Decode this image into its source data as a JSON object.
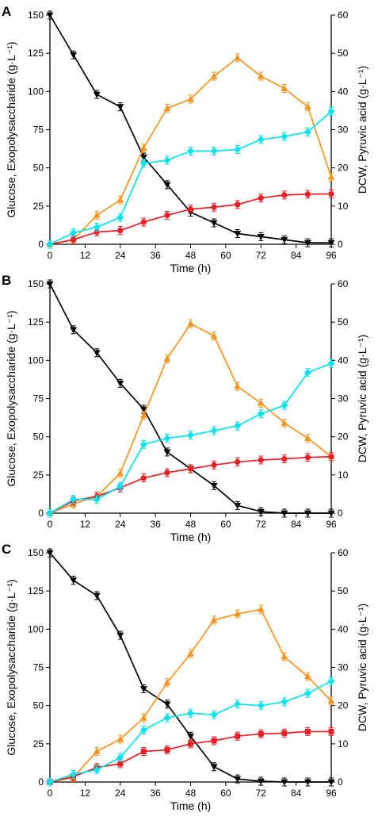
{
  "colors": {
    "glucose": "#000000",
    "dcw": "#ee1c24",
    "exopolysaccharide": "#f7941d",
    "pyruvic_acid": "#00e5ee"
  },
  "chart_data": [
    {
      "panel": "A",
      "type": "line",
      "xlabel": "Time (h)",
      "ylabel": "Glucose, Exopolysaccharide (g·L⁻¹)",
      "y2label": "DCW, Pyruvic acid (g·L⁻¹)",
      "xlim": [
        0,
        96
      ],
      "ylim": [
        0,
        150
      ],
      "y2lim": [
        0,
        60
      ],
      "xticks": [
        "0",
        "12",
        "24",
        "36",
        "48",
        "60",
        "72",
        "84",
        "96"
      ],
      "yticks": [
        "0",
        "25",
        "50",
        "75",
        "100",
        "125",
        "150"
      ],
      "y2ticks": [
        "0",
        "10",
        "20",
        "30",
        "40",
        "50",
        "60"
      ],
      "grid": false,
      "series": [
        {
          "key": "glucose",
          "axis": "left",
          "marker": "tri-down",
          "x": [
            0,
            8,
            16,
            24,
            32,
            40,
            48,
            56,
            64,
            72,
            80,
            88,
            96
          ],
          "y": [
            150,
            124,
            98,
            90,
            57,
            39,
            21,
            14,
            7,
            5,
            3,
            1,
            1
          ]
        },
        {
          "key": "exopolysaccharide",
          "axis": "left",
          "marker": "tri-up",
          "x": [
            0,
            8,
            16,
            24,
            32,
            40,
            48,
            56,
            64,
            72,
            80,
            88,
            96
          ],
          "y": [
            0,
            3,
            19,
            29,
            63,
            89,
            95,
            110,
            122,
            110,
            102,
            90,
            44
          ]
        },
        {
          "key": "dcw",
          "axis": "right",
          "marker": "circle",
          "x": [
            0,
            8,
            16,
            24,
            32,
            40,
            48,
            56,
            64,
            72,
            80,
            88,
            96
          ],
          "y": [
            0,
            1.2,
            3.2,
            3.6,
            5.8,
            7.6,
            9.2,
            9.7,
            10.4,
            12.1,
            12.9,
            13.1,
            13.2
          ]
        },
        {
          "key": "pyruvic_acid",
          "axis": "right",
          "marker": "diamond",
          "x": [
            0,
            8,
            16,
            24,
            32,
            40,
            48,
            56,
            64,
            72,
            80,
            88,
            96
          ],
          "y": [
            0,
            3,
            4.5,
            7,
            21.2,
            22,
            24.4,
            24.4,
            24.8,
            27.4,
            28.2,
            29.4,
            34.8
          ]
        }
      ]
    },
    {
      "panel": "B",
      "type": "line",
      "xlabel": "Time (h)",
      "ylabel": "Glucose, Exopolysaccharide (g·L⁻¹)",
      "y2label": "DCW, Pyruvic acid (g·L⁻¹)",
      "xlim": [
        0,
        96
      ],
      "ylim": [
        0,
        150
      ],
      "y2lim": [
        0,
        60
      ],
      "xticks": [
        "0",
        "12",
        "24",
        "36",
        "48",
        "60",
        "72",
        "84",
        "96"
      ],
      "yticks": [
        "0",
        "25",
        "50",
        "75",
        "100",
        "125",
        "150"
      ],
      "y2ticks": [
        "0",
        "10",
        "20",
        "30",
        "40",
        "50",
        "60"
      ],
      "grid": false,
      "series": [
        {
          "key": "glucose",
          "axis": "left",
          "marker": "tri-down",
          "x": [
            0,
            8,
            16,
            24,
            32,
            40,
            48,
            56,
            64,
            72,
            80,
            88,
            96
          ],
          "y": [
            150,
            120,
            105,
            85,
            68,
            40,
            29,
            18,
            5,
            1,
            0,
            0,
            0
          ]
        },
        {
          "key": "exopolysaccharide",
          "axis": "left",
          "marker": "tri-up",
          "x": [
            0,
            8,
            16,
            24,
            32,
            40,
            48,
            56,
            64,
            72,
            80,
            88,
            96
          ],
          "y": [
            0,
            6,
            11,
            26,
            64,
            101,
            124,
            116,
            83,
            72,
            59,
            49,
            37
          ]
        },
        {
          "key": "dcw",
          "axis": "right",
          "marker": "circle",
          "x": [
            0,
            8,
            16,
            24,
            32,
            40,
            48,
            56,
            64,
            72,
            80,
            88,
            96
          ],
          "y": [
            0,
            3.2,
            4.4,
            6.6,
            9.2,
            10.6,
            11.6,
            12.6,
            13.4,
            13.9,
            14.2,
            14.6,
            14.8
          ]
        },
        {
          "key": "pyruvic_acid",
          "axis": "right",
          "marker": "diamond",
          "x": [
            0,
            8,
            16,
            24,
            32,
            40,
            48,
            56,
            64,
            72,
            80,
            88,
            96
          ],
          "y": [
            0,
            3.6,
            3.6,
            7,
            18,
            19.6,
            20.4,
            21.6,
            22.8,
            26,
            28.2,
            36.8,
            39.2
          ]
        }
      ]
    },
    {
      "panel": "C",
      "type": "line",
      "xlabel": "Time (h)",
      "ylabel": "Glucose, Exopolysaccharide (g·L⁻¹)",
      "y2label": "DCW, Pyruvic acid (g·L⁻¹)",
      "xlim": [
        0,
        96
      ],
      "ylim": [
        0,
        150
      ],
      "y2lim": [
        0,
        60
      ],
      "xticks": [
        "0",
        "12",
        "24",
        "36",
        "48",
        "60",
        "72",
        "84",
        "96"
      ],
      "yticks": [
        "0",
        "25",
        "50",
        "75",
        "100",
        "125",
        "150"
      ],
      "y2ticks": [
        "0",
        "10",
        "20",
        "30",
        "40",
        "50",
        "60"
      ],
      "grid": false,
      "series": [
        {
          "key": "glucose",
          "axis": "left",
          "marker": "tri-down",
          "x": [
            0,
            8,
            16,
            24,
            32,
            40,
            48,
            56,
            64,
            72,
            80,
            88,
            96
          ],
          "y": [
            150,
            132,
            122,
            96,
            61,
            51,
            30,
            10,
            2,
            0.5,
            0,
            0,
            0
          ]
        },
        {
          "key": "exopolysaccharide",
          "axis": "left",
          "marker": "tri-up",
          "x": [
            0,
            8,
            16,
            24,
            32,
            40,
            48,
            56,
            64,
            72,
            80,
            88,
            96
          ],
          "y": [
            0,
            3,
            20,
            28,
            42,
            65,
            84,
            106,
            110,
            113,
            82,
            69,
            53
          ]
        },
        {
          "key": "dcw",
          "axis": "right",
          "marker": "square",
          "x": [
            0,
            8,
            16,
            24,
            32,
            40,
            48,
            56,
            64,
            72,
            80,
            88,
            96
          ],
          "y": [
            0,
            1.4,
            3.8,
            4.8,
            8,
            8.4,
            10,
            10.8,
            12,
            12.6,
            12.8,
            13.2,
            13.2
          ]
        },
        {
          "key": "pyruvic_acid",
          "axis": "right",
          "marker": "diamond",
          "x": [
            0,
            8,
            16,
            24,
            32,
            40,
            48,
            56,
            64,
            72,
            80,
            88,
            96
          ],
          "y": [
            0,
            2,
            3.2,
            6.4,
            13.6,
            16.8,
            18,
            17.6,
            20.4,
            20,
            21,
            23.2,
            26.4
          ]
        }
      ]
    }
  ]
}
